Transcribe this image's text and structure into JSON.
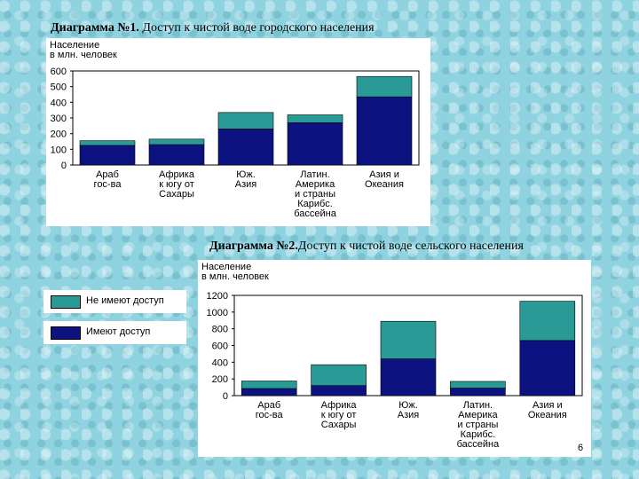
{
  "colors": {
    "has_access": "#2a9a96",
    "no_access": "#0c1280",
    "axis": "#000000"
  },
  "titles": {
    "chart1_number": "Диаграмма №1.",
    "chart1_text": " Доступ к чистой воде городского населения",
    "chart2_number": "Диаграмма №2.",
    "chart2_text": "Доступ к чистой воде сельского населения"
  },
  "legend": {
    "has_access": "Не имеют доступ",
    "no_access": "Имеют доступ"
  },
  "page_number": "6",
  "chart_data": [
    {
      "type": "bar",
      "stacked": true,
      "ylabel_lines": [
        "Население",
        "в млн. человек"
      ],
      "ylim": [
        0,
        600
      ],
      "yticks": [
        0,
        100,
        200,
        300,
        400,
        500,
        600
      ],
      "grid": false,
      "categories": [
        [
          "Араб",
          "гос-ва"
        ],
        [
          "Африка",
          "к югу от",
          "Сахары"
        ],
        [
          "Юж.",
          "Азия"
        ],
        [
          "Латин.",
          "Америка",
          "и страны",
          "Карибс.",
          "бассейна"
        ],
        [
          "Азия и",
          "Океания"
        ]
      ],
      "series": [
        {
          "key": "no_access",
          "values": [
            125,
            130,
            230,
            270,
            435
          ]
        },
        {
          "key": "has_access",
          "values": [
            30,
            35,
            105,
            50,
            130
          ]
        }
      ]
    },
    {
      "type": "bar",
      "stacked": true,
      "ylabel_lines": [
        "Население",
        "в млн. человек"
      ],
      "ylim": [
        0,
        1200
      ],
      "yticks": [
        0,
        200,
        400,
        600,
        800,
        1000,
        1200
      ],
      "grid": false,
      "categories": [
        [
          "Араб",
          "гос-ва"
        ],
        [
          "Африка",
          "к югу от",
          "Сахары"
        ],
        [
          "Юж.",
          "Азия"
        ],
        [
          "Латин.",
          "Америка",
          "и страны",
          "Карибс.",
          "бассейна"
        ],
        [
          "Азия и",
          "Океания"
        ]
      ],
      "series": [
        {
          "key": "no_access",
          "values": [
            85,
            120,
            440,
            90,
            660
          ]
        },
        {
          "key": "has_access",
          "values": [
            90,
            250,
            450,
            80,
            470
          ]
        }
      ]
    }
  ]
}
